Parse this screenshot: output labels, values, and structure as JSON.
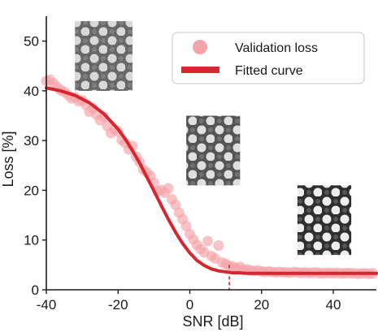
{
  "chart_data": {
    "type": "scatter",
    "xlabel": "SNR [dB]",
    "ylabel": "Loss [%]",
    "xlim": [
      -40,
      52
    ],
    "ylim": [
      0,
      55
    ],
    "xticks": [
      -40,
      -20,
      0,
      20,
      40
    ],
    "yticks": [
      0,
      10,
      20,
      30,
      40,
      50
    ],
    "grid": false,
    "legend_position": "top-right",
    "colors": {
      "scatter": "#f4a3a8",
      "curve": "#d7262f",
      "marker_line": "#d7262f",
      "axis": "#1a1a1a"
    },
    "series": [
      {
        "name": "Validation loss",
        "kind": "scatter",
        "x": [
          -40,
          -39,
          -38,
          -37,
          -36,
          -35,
          -34,
          -33,
          -32,
          -31,
          -30,
          -29,
          -28,
          -27,
          -26,
          -25,
          -24,
          -23,
          -22,
          -21,
          -20,
          -19,
          -18,
          -17,
          -16,
          -15,
          -14,
          -13,
          -12,
          -11,
          -10,
          -9,
          -8,
          -7,
          -6,
          -5,
          -4,
          -3,
          -2,
          -1,
          0,
          1,
          2,
          3,
          4,
          5,
          6,
          7,
          8,
          9,
          10,
          11,
          12,
          13,
          14,
          15,
          16,
          17,
          18,
          19,
          20,
          21,
          22,
          23,
          24,
          25,
          26,
          27,
          28,
          29,
          30,
          31,
          32,
          33,
          34,
          35,
          36,
          37,
          38,
          39,
          40,
          41,
          42,
          43,
          44,
          45,
          46,
          47,
          48,
          49,
          50,
          51
        ],
        "y": [
          42,
          42.2,
          41.5,
          40.8,
          40.1,
          39.8,
          39.2,
          38.5,
          38.7,
          37.9,
          38.1,
          37.2,
          35.8,
          36.5,
          35.2,
          34.1,
          34.8,
          32.9,
          31.5,
          32.2,
          31.8,
          30.1,
          29.5,
          28.2,
          28.9,
          26.8,
          25.7,
          24.2,
          23.6,
          22.9,
          21.5,
          19.8,
          20.1,
          19.5,
          20.4,
          18.2,
          17.1,
          15.5,
          14.2,
          12.8,
          11.2,
          10.1,
          9.0,
          8.2,
          7.5,
          9.8,
          6.8,
          6.3,
          8.9,
          5.5,
          5.2,
          4.8,
          4.7,
          4.3,
          4.6,
          4.0,
          4.1,
          3.9,
          3.8,
          3.9,
          3.7,
          3.6,
          3.7,
          3.6,
          3.5,
          3.6,
          3.5,
          3.5,
          3.4,
          3.6,
          3.5,
          3.4,
          3.5,
          3.4,
          3.4,
          3.5,
          3.4,
          3.3,
          3.4,
          3.4,
          3.3,
          3.4,
          3.3,
          3.3,
          3.4,
          3.3,
          3.3,
          3.2,
          3.3,
          3.3,
          3.2,
          3.3
        ]
      },
      {
        "name": "Fitted curve",
        "kind": "line",
        "x": [
          -40,
          -36,
          -32,
          -28,
          -24,
          -20,
          -18,
          -16,
          -14,
          -12,
          -10,
          -8,
          -6,
          -4,
          -2,
          0,
          2,
          4,
          6,
          8,
          10,
          12,
          14,
          16,
          18,
          20,
          24,
          28,
          32,
          36,
          40,
          44,
          48,
          52
        ],
        "y": [
          40.6,
          40.0,
          39.1,
          37.6,
          35.4,
          32.3,
          30.3,
          28.0,
          25.5,
          22.7,
          19.9,
          17.0,
          14.2,
          11.6,
          9.3,
          7.4,
          5.9,
          4.9,
          4.2,
          3.8,
          3.6,
          3.4,
          3.4,
          3.3,
          3.3,
          3.3,
          3.3,
          3.3,
          3.3,
          3.3,
          3.3,
          3.3,
          3.3,
          3.3
        ]
      }
    ],
    "marker_line_x": 11,
    "marker_line_to_y": 5,
    "insets": [
      {
        "label": "noisy-pattern-image",
        "x_range": [
          -32,
          -16
        ],
        "y_range": [
          40,
          54
        ]
      },
      {
        "label": "medium-noise-pattern-image",
        "x_range": [
          -1,
          14
        ],
        "y_range": [
          21,
          35
        ]
      },
      {
        "label": "clean-pattern-image",
        "x_range": [
          30,
          45
        ],
        "y_range": [
          7,
          21
        ]
      }
    ]
  }
}
